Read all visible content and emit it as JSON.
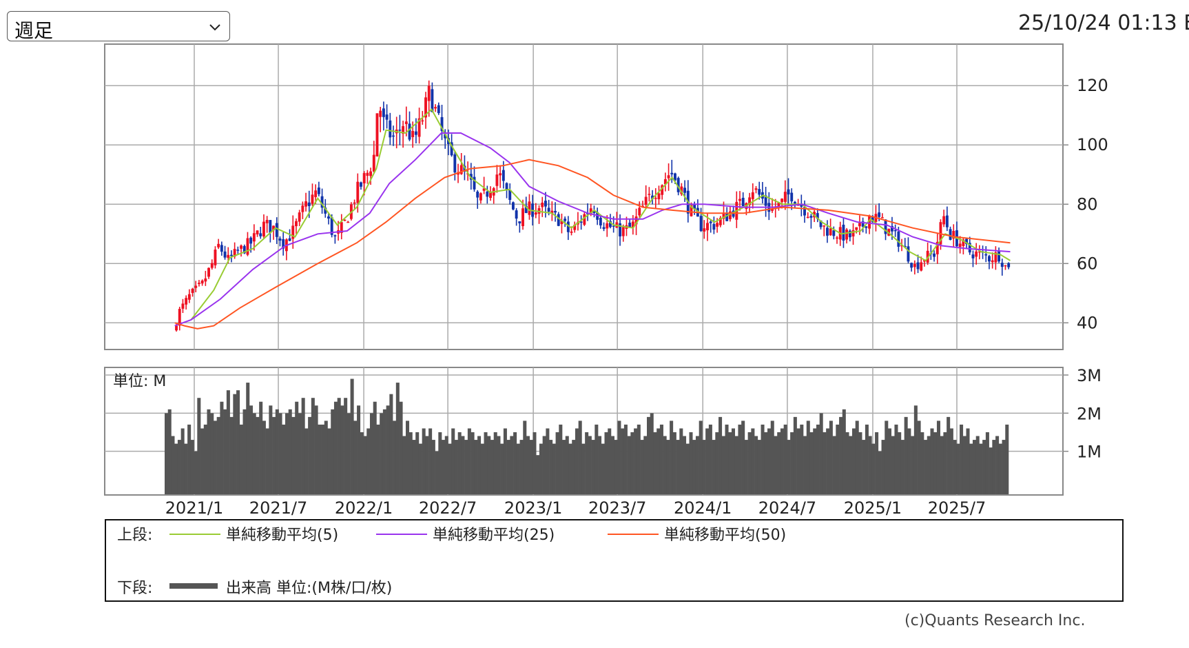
{
  "timeframe": {
    "selected": "週足",
    "chevron_icon": "chevron-down-icon"
  },
  "timestamp": "25/10/24 01:13 E",
  "copyright": "(c)Quants Research Inc.",
  "legend": {
    "upper_label": "上段:",
    "lower_label": "下段:",
    "items": [
      {
        "label": "単純移動平均(5)",
        "color": "#99cc33"
      },
      {
        "label": "単純移動平均(25)",
        "color": "#9933ee"
      },
      {
        "label": "単純移動平均(50)",
        "color": "#ff5522"
      }
    ],
    "volume_label": "出来高 単位:(M株/口/枚)",
    "volume_color": "#555555"
  },
  "chart_data": [
    {
      "type": "candlestick",
      "panel": "price",
      "ylim": [
        31,
        134
      ],
      "yticks": [
        40,
        60,
        80,
        100,
        120
      ],
      "x_tick_labels": [
        "2021/1",
        "2021/7",
        "2022/1",
        "2022/7",
        "2023/1",
        "2023/7",
        "2024/1",
        "2024/7",
        "2025/1",
        "2025/7"
      ],
      "grid": true,
      "colors": {
        "up": "#ee1122",
        "down": "#1133aa"
      },
      "close_path": [
        [
          "2020/11/20",
          37
        ],
        [
          "2020/12/04",
          44
        ],
        [
          "2020/12/25",
          49
        ],
        [
          "2021/01/22",
          53
        ],
        [
          "2021/02/12",
          60
        ],
        [
          "2021/02/26",
          66
        ],
        [
          "2021/03/19",
          61
        ],
        [
          "2021/04/09",
          64
        ],
        [
          "2021/05/07",
          67
        ],
        [
          "2021/06/04",
          73
        ],
        [
          "2021/06/25",
          72
        ],
        [
          "2021/07/16",
          67
        ],
        [
          "2021/08/06",
          71
        ],
        [
          "2021/09/03",
          80
        ],
        [
          "2021/09/24",
          84
        ],
        [
          "2021/10/15",
          76
        ],
        [
          "2021/11/05",
          68
        ],
        [
          "2021/11/26",
          74
        ],
        [
          "2021/12/17",
          83
        ],
        [
          "2022/01/14",
          91
        ],
        [
          "2022/01/28",
          97
        ],
        [
          "2022/02/04",
          116
        ],
        [
          "2022/02/18",
          106
        ],
        [
          "2022/03/11",
          102
        ],
        [
          "2022/04/01",
          108
        ],
        [
          "2022/04/22",
          101
        ],
        [
          "2022/05/13",
          110
        ],
        [
          "2022/05/27",
          118
        ],
        [
          "2022/06/17",
          106
        ],
        [
          "2022/07/08",
          96
        ],
        [
          "2022/07/29",
          92
        ],
        [
          "2022/08/19",
          88
        ],
        [
          "2022/09/09",
          80
        ],
        [
          "2022/09/30",
          85
        ],
        [
          "2022/10/21",
          91
        ],
        [
          "2022/11/11",
          82
        ],
        [
          "2022/12/02",
          75
        ],
        [
          "2022/12/23",
          78
        ],
        [
          "2023/01/20",
          79
        ],
        [
          "2023/02/10",
          76
        ],
        [
          "2023/03/03",
          75
        ],
        [
          "2023/03/24",
          70
        ],
        [
          "2023/04/14",
          74
        ],
        [
          "2023/05/12",
          80
        ],
        [
          "2023/06/02",
          74
        ],
        [
          "2023/06/23",
          72
        ],
        [
          "2023/07/14",
          71
        ],
        [
          "2023/08/04",
          72
        ],
        [
          "2023/08/25",
          78
        ],
        [
          "2023/09/15",
          83
        ],
        [
          "2023/10/06",
          87
        ],
        [
          "2023/10/27",
          91
        ],
        [
          "2023/11/17",
          86
        ],
        [
          "2023/12/08",
          78
        ],
        [
          "2023/12/29",
          73
        ],
        [
          "2024/01/26",
          73
        ],
        [
          "2024/02/16",
          75
        ],
        [
          "2024/03/08",
          78
        ],
        [
          "2024/03/29",
          80
        ],
        [
          "2024/04/19",
          86
        ],
        [
          "2024/05/10",
          82
        ],
        [
          "2024/05/31",
          78
        ],
        [
          "2024/06/21",
          80
        ],
        [
          "2024/07/12",
          84
        ],
        [
          "2024/08/02",
          80
        ],
        [
          "2024/08/23",
          77
        ],
        [
          "2024/09/13",
          73
        ],
        [
          "2024/10/04",
          71
        ],
        [
          "2024/10/25",
          70
        ],
        [
          "2024/11/15",
          69
        ],
        [
          "2024/12/06",
          71
        ],
        [
          "2024/12/27",
          76
        ],
        [
          "2025/01/17",
          75
        ],
        [
          "2025/02/07",
          71
        ],
        [
          "2025/02/28",
          68
        ],
        [
          "2025/03/21",
          63
        ],
        [
          "2025/04/04",
          59
        ],
        [
          "2025/04/25",
          62
        ],
        [
          "2025/05/16",
          63
        ],
        [
          "2025/06/06",
          76
        ],
        [
          "2025/06/20",
          70
        ],
        [
          "2025/07/11",
          67
        ],
        [
          "2025/08/01",
          64
        ],
        [
          "2025/08/22",
          63
        ],
        [
          "2025/09/12",
          62
        ],
        [
          "2025/10/03",
          63
        ],
        [
          "2025/10/17",
          59
        ],
        [
          "2025/10/24",
          60
        ]
      ],
      "series": [
        {
          "name": "単純移動平均(5)",
          "color": "#99cc33",
          "points": [
            [
              "2020/12/25",
              41
            ],
            [
              "2021/02/12",
              51
            ],
            [
              "2021/03/19",
              62
            ],
            [
              "2021/05/07",
              65
            ],
            [
              "2021/06/25",
              72
            ],
            [
              "2021/08/06",
              69
            ],
            [
              "2021/09/24",
              82
            ],
            [
              "2021/11/05",
              73
            ],
            [
              "2021/12/17",
              79
            ],
            [
              "2022/01/28",
              92
            ],
            [
              "2022/02/18",
              105
            ],
            [
              "2022/04/01",
              104
            ],
            [
              "2022/05/27",
              112
            ],
            [
              "2022/07/08",
              100
            ],
            [
              "2022/08/19",
              89
            ],
            [
              "2022/09/30",
              84
            ],
            [
              "2022/11/11",
              85
            ],
            [
              "2022/12/23",
              78
            ],
            [
              "2023/02/10",
              77
            ],
            [
              "2023/03/24",
              72
            ],
            [
              "2023/05/12",
              78
            ],
            [
              "2023/06/23",
              73
            ],
            [
              "2023/08/04",
              72
            ],
            [
              "2023/09/15",
              82
            ],
            [
              "2023/10/27",
              89
            ],
            [
              "2023/12/08",
              79
            ],
            [
              "2024/01/26",
              74
            ],
            [
              "2024/03/29",
              79
            ],
            [
              "2024/05/10",
              83
            ],
            [
              "2024/06/21",
              80
            ],
            [
              "2024/08/02",
              80
            ],
            [
              "2024/09/13",
              74
            ],
            [
              "2024/10/25",
              70
            ],
            [
              "2024/12/06",
              71
            ],
            [
              "2024/12/27",
              75
            ],
            [
              "2025/02/07",
              70
            ],
            [
              "2025/03/21",
              64
            ],
            [
              "2025/04/25",
              61
            ],
            [
              "2025/06/06",
              70
            ],
            [
              "2025/07/11",
              68
            ],
            [
              "2025/08/22",
              64
            ],
            [
              "2025/10/03",
              63
            ],
            [
              "2025/10/24",
              61
            ]
          ]
        },
        {
          "name": "単純移動平均(25)",
          "color": "#9933ee",
          "points": [
            [
              "2020/11/20",
              39
            ],
            [
              "2020/12/25",
              41
            ],
            [
              "2021/02/26",
              48
            ],
            [
              "2021/05/07",
              58
            ],
            [
              "2021/07/16",
              66
            ],
            [
              "2021/09/24",
              70
            ],
            [
              "2021/11/26",
              71
            ],
            [
              "2022/01/14",
              77
            ],
            [
              "2022/02/25",
              87
            ],
            [
              "2022/04/22",
              95
            ],
            [
              "2022/06/17",
              104
            ],
            [
              "2022/07/29",
              104
            ],
            [
              "2022/09/30",
              99
            ],
            [
              "2022/11/11",
              94
            ],
            [
              "2022/12/23",
              86
            ],
            [
              "2023/02/24",
              81
            ],
            [
              "2023/04/28",
              77
            ],
            [
              "2023/06/23",
              75
            ],
            [
              "2023/08/25",
              75
            ],
            [
              "2023/10/06",
              78
            ],
            [
              "2023/11/17",
              80
            ],
            [
              "2024/01/05",
              80
            ],
            [
              "2024/03/29",
              79
            ],
            [
              "2024/05/31",
              79
            ],
            [
              "2024/08/02",
              80
            ],
            [
              "2024/09/27",
              77
            ],
            [
              "2024/11/29",
              74
            ],
            [
              "2025/01/31",
              73
            ],
            [
              "2025/03/28",
              69
            ],
            [
              "2025/05/30",
              66
            ],
            [
              "2025/07/25",
              65
            ],
            [
              "2025/10/24",
              64
            ]
          ]
        },
        {
          "name": "単純移動平均(50)",
          "color": "#ff5522",
          "points": [
            [
              "2020/11/20",
              40
            ],
            [
              "2020/12/11",
              39
            ],
            [
              "2021/01/08",
              38
            ],
            [
              "2021/02/12",
              39
            ],
            [
              "2021/04/09",
              45
            ],
            [
              "2021/06/25",
              52
            ],
            [
              "2021/09/24",
              60
            ],
            [
              "2021/12/17",
              67
            ],
            [
              "2022/02/18",
              74
            ],
            [
              "2022/04/22",
              82
            ],
            [
              "2022/06/24",
              89
            ],
            [
              "2022/08/19",
              92
            ],
            [
              "2022/10/28",
              93
            ],
            [
              "2022/12/23",
              95
            ],
            [
              "2023/02/24",
              93
            ],
            [
              "2023/04/28",
              89
            ],
            [
              "2023/06/23",
              83
            ],
            [
              "2023/08/25",
              79
            ],
            [
              "2023/10/27",
              78
            ],
            [
              "2024/01/05",
              77
            ],
            [
              "2024/03/29",
              77
            ],
            [
              "2024/06/21",
              79
            ],
            [
              "2024/09/27",
              78
            ],
            [
              "2024/12/27",
              76
            ],
            [
              "2025/03/28",
              72
            ],
            [
              "2025/06/27",
              69
            ],
            [
              "2025/10/24",
              67
            ]
          ]
        }
      ]
    },
    {
      "type": "bar",
      "panel": "volume",
      "unit_label": "単位: M",
      "yticks": [
        {
          "value": 1,
          "label": "1M"
        },
        {
          "value": 2,
          "label": "2M"
        },
        {
          "value": 3,
          "label": "3M"
        }
      ],
      "ylim": [
        0,
        3.0
      ],
      "color": "#555555",
      "weekly_values": [
        2.0,
        2.1,
        1.4,
        1.2,
        1.3,
        1.6,
        1.2,
        1.7,
        1.3,
        1.0,
        2.4,
        1.6,
        1.7,
        2.1,
        2.0,
        1.8,
        1.9,
        2.3,
        2.1,
        2.6,
        1.9,
        2.5,
        2.6,
        1.7,
        2.1,
        2.8,
        2.2,
        2.0,
        1.9,
        2.3,
        1.8,
        1.6,
        2.2,
        1.9,
        2.1,
        2.0,
        1.7,
        2.0,
        2.1,
        1.9,
        2.3,
        2.0,
        2.4,
        1.6,
        1.9,
        2.4,
        2.2,
        1.7,
        1.7,
        1.8,
        1.6,
        2.1,
        2.3,
        2.4,
        2.2,
        2.4,
        2.0,
        2.9,
        1.8,
        2.2,
        1.5,
        1.4,
        1.6,
        2.0,
        2.3,
        1.7,
        2.0,
        2.1,
        2.2,
        2.5,
        1.8,
        2.8,
        2.3,
        1.4,
        1.8,
        1.5,
        1.3,
        1.5,
        1.2,
        1.6,
        1.4,
        1.6,
        1.3,
        1.0,
        1.5,
        1.3,
        1.4,
        1.2,
        1.6,
        1.3,
        1.5,
        1.4,
        1.3,
        1.6,
        1.5,
        1.3,
        1.4,
        1.2,
        1.5,
        1.4,
        1.3,
        1.5,
        1.4,
        1.2,
        1.6,
        1.3,
        1.4,
        1.5,
        1.2,
        1.3,
        1.8,
        1.4,
        1.3,
        1.5,
        0.9,
        1.2,
        1.4,
        1.6,
        1.3,
        1.2,
        1.5,
        1.7,
        1.3,
        1.4,
        1.2,
        1.3,
        1.6,
        1.8,
        1.2,
        1.5,
        1.4,
        1.3,
        1.7,
        1.4,
        1.2,
        1.5,
        1.6,
        1.4,
        1.3,
        1.8,
        1.6,
        1.7,
        1.4,
        1.5,
        1.6,
        1.7,
        1.3,
        1.4,
        1.9,
        2.0,
        1.5,
        1.6,
        1.7,
        1.4,
        1.3,
        1.8,
        1.5,
        1.3,
        1.6,
        1.4,
        1.2,
        1.5,
        1.3,
        1.4,
        1.8,
        1.3,
        1.6,
        1.7,
        1.3,
        1.5,
        1.9,
        1.4,
        1.7,
        1.5,
        1.6,
        1.4,
        1.7,
        1.8,
        1.3,
        1.5,
        1.6,
        1.4,
        1.3,
        1.7,
        1.5,
        1.6,
        1.8,
        1.4,
        1.5,
        1.6,
        1.7,
        1.3,
        1.5,
        1.9,
        1.6,
        1.7,
        1.4,
        1.8,
        1.5,
        1.6,
        1.7,
        2.0,
        1.5,
        1.6,
        1.8,
        1.4,
        1.7,
        1.9,
        2.1,
        1.5,
        1.4,
        1.6,
        1.8,
        1.5,
        1.3,
        1.7,
        1.4,
        1.2,
        1.5,
        1.0,
        1.3,
        1.8,
        1.6,
        1.4,
        1.7,
        1.5,
        1.3,
        1.9,
        1.6,
        1.4,
        2.2,
        1.8,
        1.5,
        1.3,
        1.4,
        1.6,
        1.5,
        1.8,
        1.4,
        1.5,
        1.9,
        1.6,
        1.3,
        1.2,
        1.7,
        1.4,
        1.6,
        1.2,
        1.3,
        1.4,
        1.2,
        1.3,
        1.5,
        1.1,
        1.3,
        1.4,
        1.2,
        1.3,
        1.7
      ]
    }
  ]
}
